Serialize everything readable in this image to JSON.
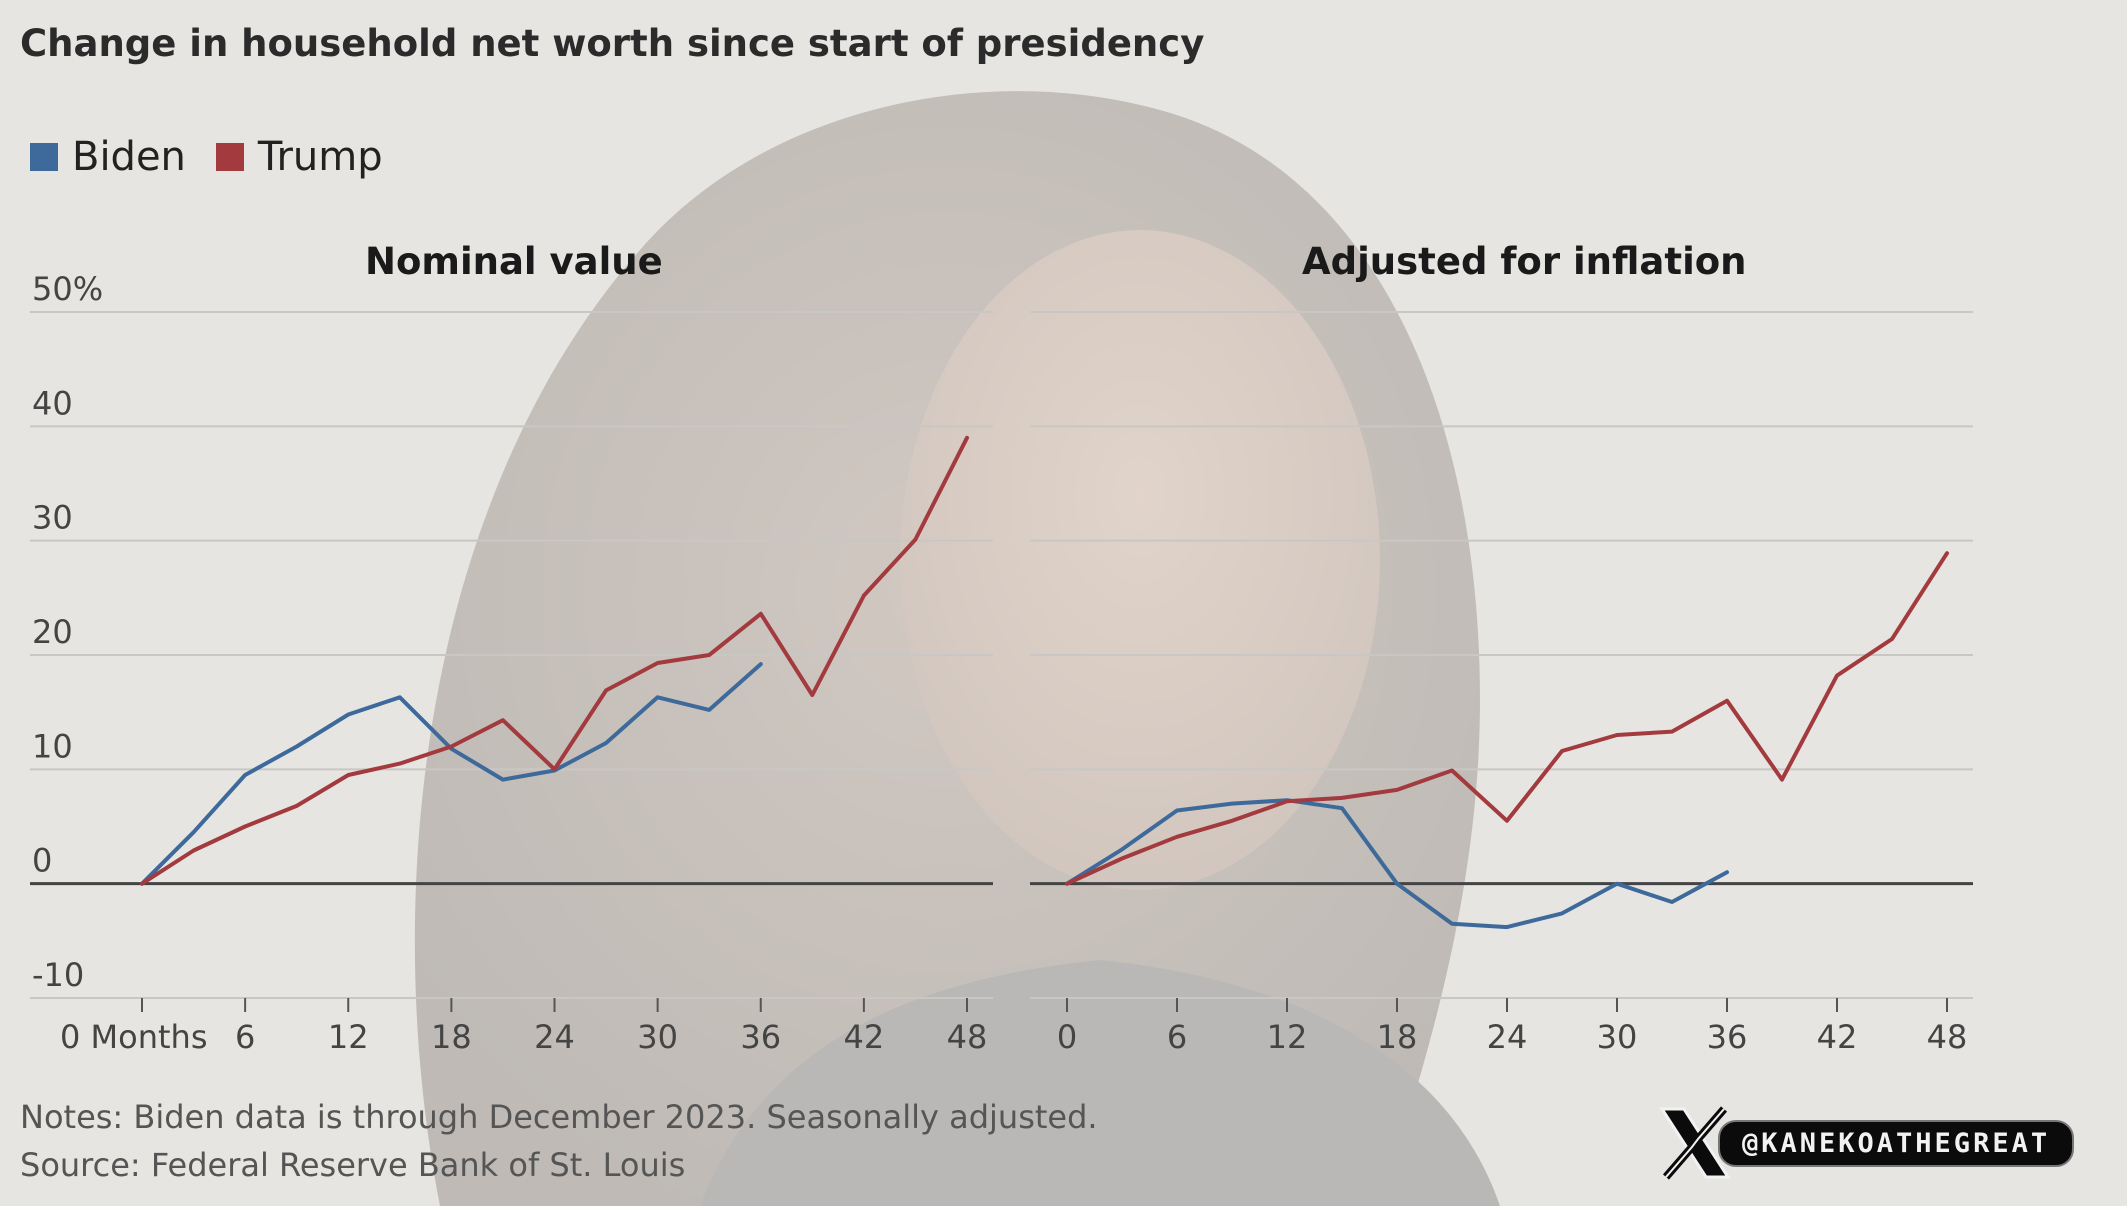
{
  "title": "Change in household net worth since start of presidency",
  "legend": [
    {
      "name": "Biden",
      "color": "#3e6a9b"
    },
    {
      "name": "Trump",
      "color": "#a23a3e"
    }
  ],
  "notes": "Notes: Biden data is through December 2023. Seasonally adjusted.",
  "source": "Source: Federal Reserve Bank of St. Louis",
  "watermark": {
    "icon": "x-logo-icon",
    "handle": "@KANEKOATHEGREAT"
  },
  "chart_data": [
    {
      "type": "line",
      "title": "Nominal value",
      "x_tick_labels": [
        "0 Months",
        "6",
        "12",
        "18",
        "24",
        "30",
        "36",
        "42",
        "48"
      ],
      "x_ticks": [
        0,
        6,
        12,
        18,
        24,
        30,
        36,
        42,
        48
      ],
      "y_ticks": [
        -10,
        0,
        10,
        20,
        30,
        40,
        50
      ],
      "y_tick_labels": [
        "-10",
        "0",
        "10",
        "20",
        "30",
        "40",
        "50%"
      ],
      "ylim": [
        -10,
        50
      ],
      "xlim": [
        0,
        48
      ],
      "grid": true,
      "series": [
        {
          "name": "Biden",
          "color": "#3e6a9b",
          "x": [
            0,
            3,
            6,
            9,
            12,
            15,
            18,
            21,
            24,
            27,
            30,
            33,
            36
          ],
          "y": [
            0,
            4.5,
            9.5,
            12,
            14.8,
            16.3,
            11.8,
            9.1,
            9.9,
            12.3,
            16.3,
            15.2,
            19.2
          ]
        },
        {
          "name": "Trump",
          "color": "#a23a3e",
          "x": [
            0,
            3,
            6,
            9,
            12,
            15,
            18,
            21,
            24,
            27,
            30,
            33,
            36,
            39,
            42,
            45,
            48
          ],
          "y": [
            0,
            2.9,
            5,
            6.8,
            9.5,
            10.5,
            12,
            14.3,
            10,
            16.9,
            19.3,
            20,
            23.6,
            16.5,
            25.2,
            30.1,
            39
          ]
        }
      ]
    },
    {
      "type": "line",
      "title": "Adjusted for inflation",
      "x_tick_labels": [
        "0",
        "6",
        "12",
        "18",
        "24",
        "30",
        "36",
        "42",
        "48"
      ],
      "x_ticks": [
        0,
        6,
        12,
        18,
        24,
        30,
        36,
        42,
        48
      ],
      "y_ticks": [
        -10,
        0,
        10,
        20,
        30,
        40,
        50
      ],
      "ylim": [
        -10,
        50
      ],
      "xlim": [
        0,
        48
      ],
      "grid": true,
      "series": [
        {
          "name": "Biden",
          "color": "#3e6a9b",
          "x": [
            0,
            3,
            6,
            9,
            12,
            15,
            18,
            21,
            24,
            27,
            30,
            33,
            36
          ],
          "y": [
            0,
            3,
            6.4,
            7,
            7.3,
            6.6,
            0,
            -3.5,
            -3.8,
            -2.6,
            0,
            -1.6,
            1
          ]
        },
        {
          "name": "Trump",
          "color": "#a23a3e",
          "x": [
            0,
            3,
            6,
            9,
            12,
            15,
            18,
            21,
            24,
            27,
            30,
            33,
            36,
            39,
            42,
            45,
            48
          ],
          "y": [
            0,
            2.2,
            4.1,
            5.5,
            7.2,
            7.5,
            8.2,
            9.9,
            5.5,
            11.6,
            13,
            13.3,
            16,
            9.1,
            18.2,
            21.4,
            28.9
          ]
        }
      ]
    }
  ]
}
